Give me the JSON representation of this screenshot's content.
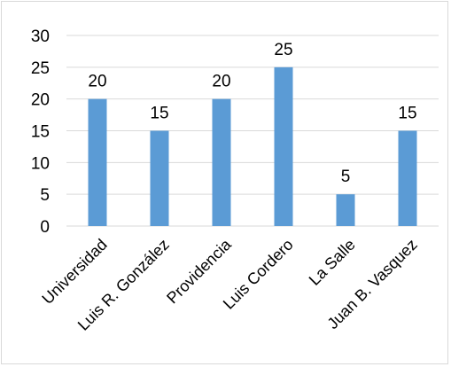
{
  "chart_data": {
    "type": "bar",
    "categories": [
      "Universidad",
      "Luis R. González",
      "Providencia",
      "Luis Cordero",
      "La Salle",
      "Juan B. Vasquez"
    ],
    "values": [
      20,
      15,
      20,
      25,
      5,
      15
    ],
    "yticks": [
      "0",
      "5",
      "10",
      "15",
      "20",
      "25",
      "30"
    ],
    "ylim": [
      0,
      30
    ],
    "grid": true,
    "bar_color": "#5b9bd5",
    "grid_color": "#d9d9d9",
    "data_labels": [
      "20",
      "15",
      "20",
      "25",
      "5",
      "15"
    ]
  }
}
